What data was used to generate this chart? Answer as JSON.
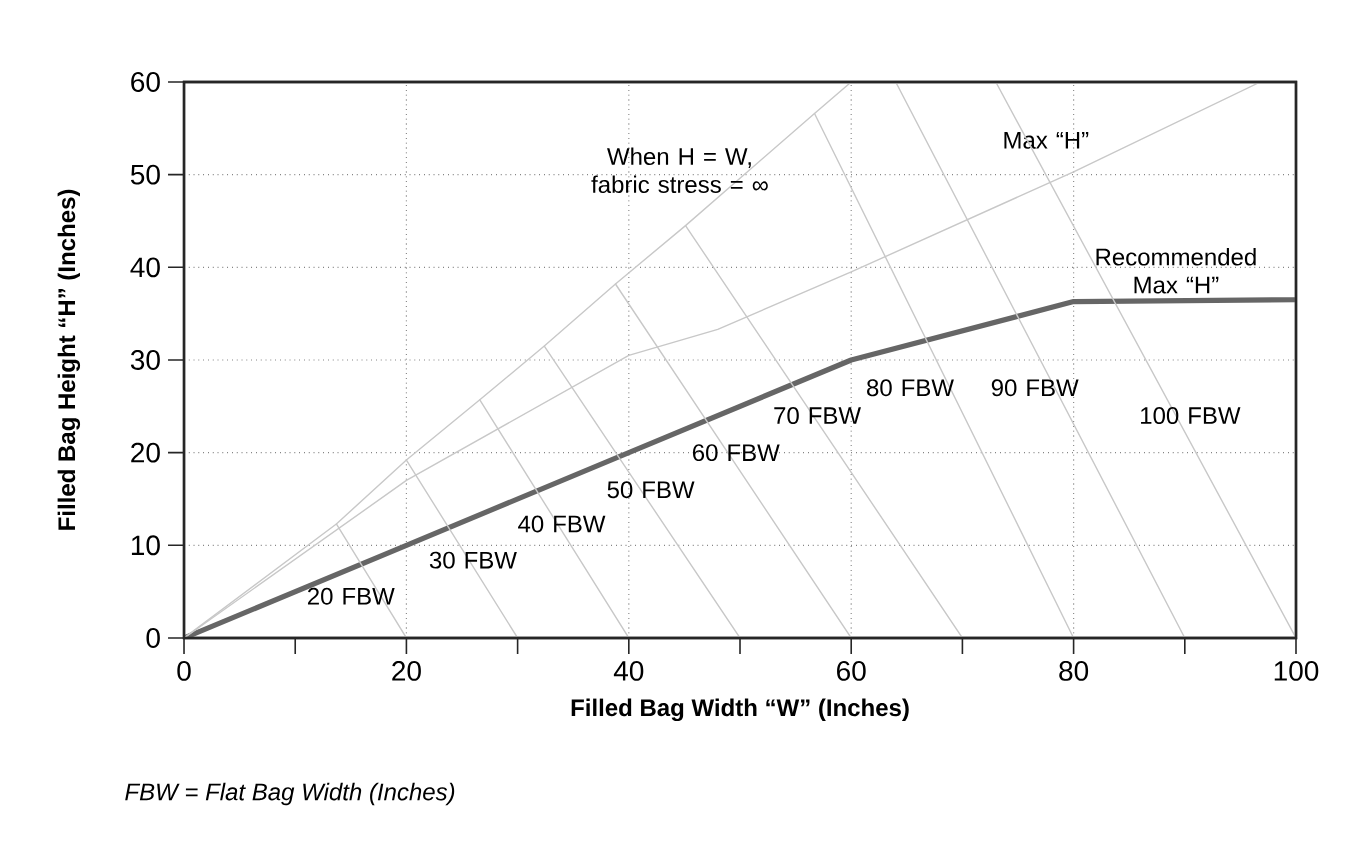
{
  "chart_data": {
    "type": "line",
    "xlabel": "Filled Bag Width “W” (Inches)",
    "ylabel": "Filled Bag Height “H” (Inches)",
    "xlim": [
      0,
      100
    ],
    "ylim": [
      0,
      60
    ],
    "xticks": [
      0,
      {
        "value": 10,
        "label": null
      },
      20,
      {
        "value": 30,
        "label": null
      },
      40,
      {
        "value": 50,
        "label": null
      },
      60,
      {
        "value": 70,
        "label": null
      },
      80,
      {
        "value": 90,
        "label": null
      },
      100
    ],
    "yticks": [
      0,
      10,
      20,
      30,
      40,
      50,
      60
    ],
    "grid": true,
    "legend": false,
    "line_style": "solid",
    "marker": "none",
    "series": [
      {
        "name": "Recommended Max “H”",
        "color": "#666666",
        "x": [
          0,
          20,
          40,
          60,
          80,
          100
        ],
        "values": [
          0,
          10,
          20,
          30,
          36.3,
          36.5
        ]
      },
      {
        "name": "When H = W, fabric stress = ∞",
        "color": "#c8c8c8",
        "x": [
          0,
          13.7,
          20,
          26.6,
          32.4,
          38.8,
          45.1,
          56.7,
          60
        ],
        "values": [
          0,
          12.3,
          19.2,
          25.7,
          31.5,
          38.2,
          44.5,
          56.6,
          60
        ]
      },
      {
        "name": "Max “H”",
        "color": "#c8c8c8",
        "x": [
          0,
          20,
          40,
          48,
          60,
          80,
          96.8
        ],
        "values": [
          0,
          17,
          30.5,
          33.3,
          39.5,
          50.3,
          60
        ]
      },
      {
        "name": "20 FBW",
        "color": "#c8c8c8",
        "x": [
          20,
          13.7
        ],
        "values": [
          0,
          12.3
        ]
      },
      {
        "name": "30 FBW",
        "color": "#c8c8c8",
        "x": [
          30,
          20
        ],
        "values": [
          0,
          19.2
        ]
      },
      {
        "name": "40 FBW",
        "color": "#c8c8c8",
        "x": [
          40,
          26.6
        ],
        "values": [
          0,
          25.7
        ]
      },
      {
        "name": "50 FBW",
        "color": "#c8c8c8",
        "x": [
          50,
          32.4
        ],
        "values": [
          0,
          31.5
        ]
      },
      {
        "name": "60 FBW",
        "color": "#c8c8c8",
        "x": [
          60,
          38.8
        ],
        "values": [
          0,
          38.2
        ]
      },
      {
        "name": "70 FBW",
        "color": "#c8c8c8",
        "x": [
          70,
          45.1
        ],
        "values": [
          0,
          44.5
        ]
      },
      {
        "name": "80 FBW",
        "color": "#c8c8c8",
        "x": [
          80,
          56.7
        ],
        "values": [
          0,
          56.6
        ]
      },
      {
        "name": "90 FBW",
        "color": "#c8c8c8",
        "x": [
          90,
          64
        ],
        "values": [
          0,
          60
        ]
      },
      {
        "name": "100 FBW",
        "color": "#c8c8c8",
        "x": [
          100,
          73
        ],
        "values": [
          0,
          60
        ]
      }
    ],
    "annotations": [
      "*FBW = Flat Bag Width (Inches)*"
    ]
  }
}
